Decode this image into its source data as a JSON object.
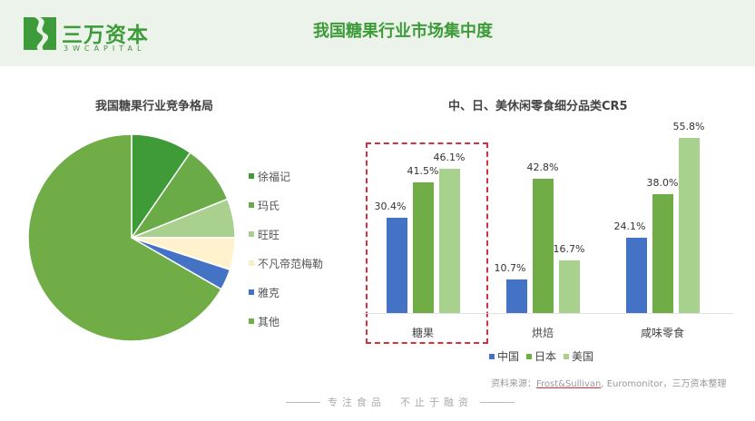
{
  "header": {
    "logo_cn": "三万资本",
    "logo_en": "3WCAPITAL",
    "title": "我国糖果行业市场集中度",
    "brand_color": "#3e9b3a"
  },
  "pie": {
    "title": "我国糖果行业竞争格局"
  },
  "bar": {
    "title": "中、日、美休闲零食细分品类CR5"
  },
  "source": {
    "prefix": "资料来源：",
    "link": "Frost&Sullivan",
    "suffix": ", Euromonitor，三万资本整理"
  },
  "footer": {
    "slogan": "专注食品　不止于融资"
  },
  "chart_data": [
    {
      "type": "pie",
      "title": "我国糖果行业竞争格局",
      "legend_position": "right",
      "labels": [
        "徐福记",
        "玛氏",
        "旺旺",
        "不凡帝范梅勒",
        "雅克",
        "其他"
      ],
      "values": [
        9.6,
        9.3,
        6.1,
        5.0,
        3.3,
        66.7
      ],
      "colors": [
        "#3f9a38",
        "#6aab47",
        "#a9d08e",
        "#fff2cc",
        "#4472c4",
        "#70ad47"
      ],
      "note": "slice sizes estimated from angles; no data labels shown"
    },
    {
      "type": "bar",
      "title": "中、日、美休闲零食细分品类CR5",
      "categories": [
        "糖果",
        "烘焙",
        "咸味零食"
      ],
      "series": [
        {
          "name": "中国",
          "color": "#4472c4",
          "values": [
            30.4,
            10.7,
            24.1
          ],
          "labels": [
            "30.4%",
            "10.7%",
            "24.1%"
          ]
        },
        {
          "name": "日本",
          "color": "#70ad47",
          "values": [
            41.5,
            42.8,
            38.0
          ],
          "labels": [
            "41.5%",
            "42.8%",
            "38.0%"
          ]
        },
        {
          "name": "美国",
          "color": "#a9d18e",
          "values": [
            46.1,
            16.7,
            55.8
          ],
          "labels": [
            "46.1%",
            "16.7%",
            "55.8%"
          ]
        }
      ],
      "legend_position": "bottom",
      "grid": false,
      "highlight_category": "糖果",
      "xlabel": "",
      "ylabel": ""
    }
  ]
}
